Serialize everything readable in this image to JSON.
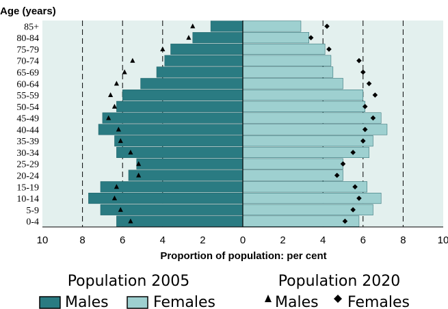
{
  "chart_data": {
    "type": "bar",
    "subtype": "population-pyramid",
    "ylabel": "Age (years)",
    "xlabel": "Proportion of population: per cent",
    "xlim": [
      -10,
      10
    ],
    "x_ticks": [
      -10,
      -8,
      -6,
      -4,
      -2,
      0,
      2,
      4,
      6,
      8,
      10
    ],
    "x_tick_labels": [
      "10",
      "8",
      "6",
      "4",
      "2",
      "0",
      "2",
      "4",
      "6",
      "8",
      "10"
    ],
    "gridlines_dashed_at": [
      -8,
      -6,
      -4,
      4,
      6,
      8
    ],
    "categories": [
      "0-4",
      "5-9",
      "10-14",
      "15-19",
      "20-24",
      "25-29",
      "30-34",
      "35-39",
      "40-44",
      "45-49",
      "50-54",
      "55-59",
      "60-64",
      "65-69",
      "70-74",
      "75-79",
      "80-84",
      "85+"
    ],
    "series": [
      {
        "name": "Males",
        "group": "Population 2005",
        "kind": "bar",
        "side": "left",
        "color": "#2a7b82",
        "values": [
          6.3,
          7.1,
          7.7,
          7.1,
          5.7,
          5.3,
          6.3,
          6.4,
          7.2,
          7.0,
          6.3,
          6.0,
          5.1,
          4.3,
          3.9,
          3.6,
          2.5,
          1.6
        ]
      },
      {
        "name": "Females",
        "group": "Population 2005",
        "kind": "bar",
        "side": "right",
        "color": "#9ed0d0",
        "values": [
          5.8,
          6.5,
          6.9,
          6.2,
          5.0,
          5.0,
          6.3,
          6.5,
          7.2,
          6.9,
          6.1,
          6.0,
          5.0,
          4.5,
          4.4,
          4.1,
          3.3,
          2.9
        ]
      },
      {
        "name": "Males",
        "group": "Population 2020",
        "kind": "marker",
        "marker": "triangle",
        "side": "left",
        "values": [
          5.6,
          6.1,
          6.4,
          6.3,
          5.2,
          5.2,
          5.6,
          6.1,
          6.2,
          6.7,
          6.4,
          6.6,
          6.3,
          5.9,
          5.5,
          4.0,
          2.7,
          2.5
        ]
      },
      {
        "name": "Females",
        "group": "Population 2020",
        "kind": "marker",
        "marker": "diamond",
        "side": "right",
        "values": [
          5.1,
          5.5,
          5.8,
          5.6,
          4.7,
          5.0,
          5.5,
          6.0,
          6.1,
          6.5,
          6.1,
          6.6,
          6.3,
          6.0,
          5.8,
          4.3,
          3.4,
          4.2
        ]
      }
    ],
    "colors": {
      "panel_bg": "#e3f0ee",
      "bar_outline": "#ffffff",
      "axis": "#000000"
    }
  },
  "legend": {
    "group1_title": "Population 2005",
    "group2_title": "Population 2020",
    "males_label": "Males",
    "females_label": "Females",
    "males_label_2020": "Males",
    "females_label_2020": "Females"
  }
}
